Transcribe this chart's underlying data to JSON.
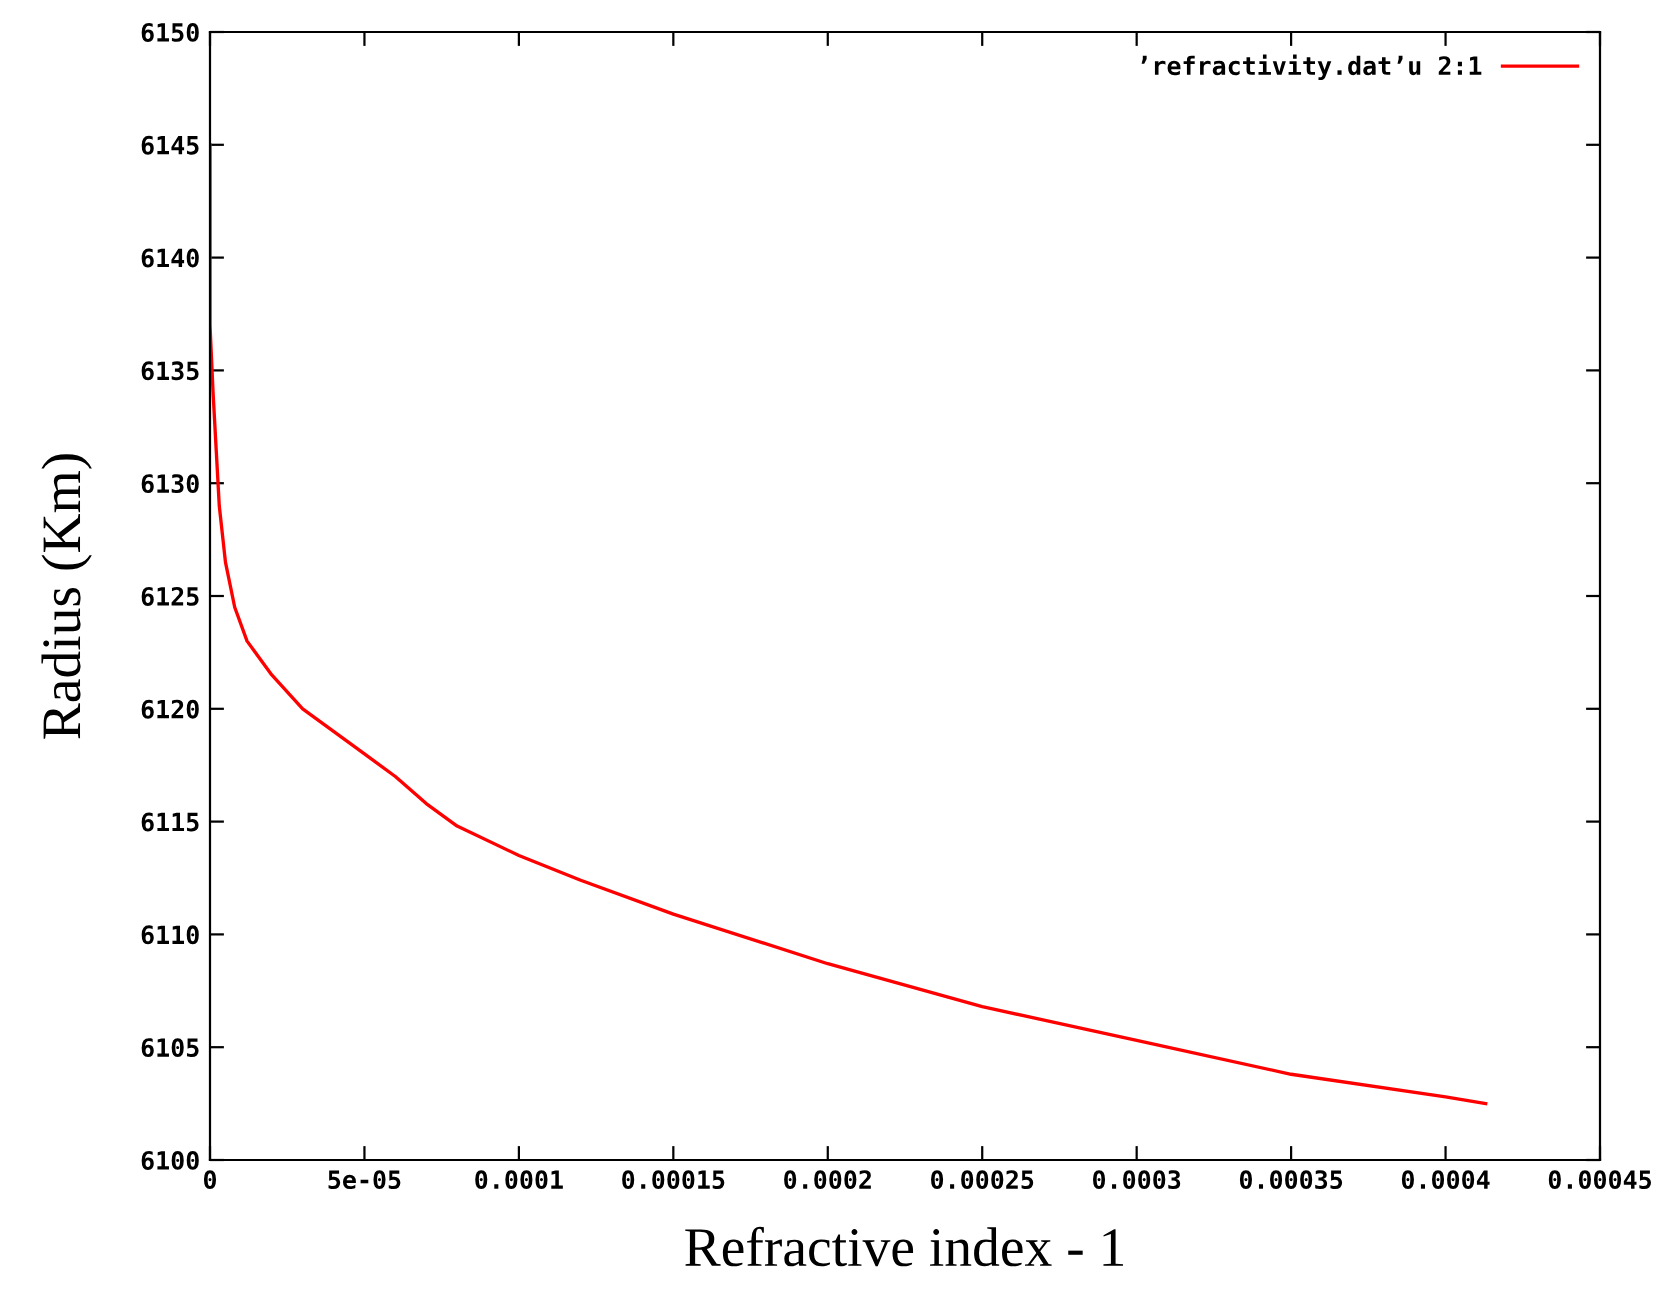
{
  "chart_data": {
    "type": "line",
    "xlabel": "Refractive index - 1",
    "ylabel": "Radius (Km)",
    "x": [
      0,
      0,
      1e-06,
      2e-06,
      3e-06,
      5e-06,
      8e-06,
      1.2e-05,
      2e-05,
      3e-05,
      4e-05,
      5e-05,
      6e-05,
      7e-05,
      8e-05,
      0.0001,
      0.00012,
      0.00015,
      0.0002,
      0.00025,
      0.0003,
      0.00035,
      0.0004,
      0.000413
    ],
    "series": [
      {
        "name": "’refractivity.dat’u 2:1",
        "color": "#ff0000",
        "values": [
          6145,
          6137,
          6134,
          6131.5,
          6129,
          6126.5,
          6124.5,
          6123,
          6121.5,
          6120,
          6119,
          6118,
          6117,
          6115.8,
          6114.8,
          6113.5,
          6112.4,
          6110.9,
          6108.7,
          6106.8,
          6105.3,
          6103.8,
          6102.8,
          6102.5
        ]
      }
    ],
    "xlim": [
      0,
      0.00045
    ],
    "xticks": [
      0,
      {
        "value": 5e-05,
        "label": "5e-05"
      },
      {
        "value": 0.0001,
        "label": "0.0001"
      },
      {
        "value": 0.00015,
        "label": "0.00015"
      },
      {
        "value": 0.0002,
        "label": "0.0002"
      },
      {
        "value": 0.00025,
        "label": "0.00025"
      },
      {
        "value": 0.0003,
        "label": "0.0003"
      },
      {
        "value": 0.00035,
        "label": "0.00035"
      },
      {
        "value": 0.0004,
        "label": "0.0004"
      },
      {
        "value": 0.00045,
        "label": "0.00045"
      }
    ],
    "ylim": [
      6100,
      6150
    ],
    "yticks": [
      6100,
      6105,
      6110,
      6115,
      6120,
      6125,
      6130,
      6135,
      6140,
      6145,
      6150
    ],
    "grid": false,
    "legend": "top right",
    "marker": "none",
    "line_style": "solid"
  }
}
